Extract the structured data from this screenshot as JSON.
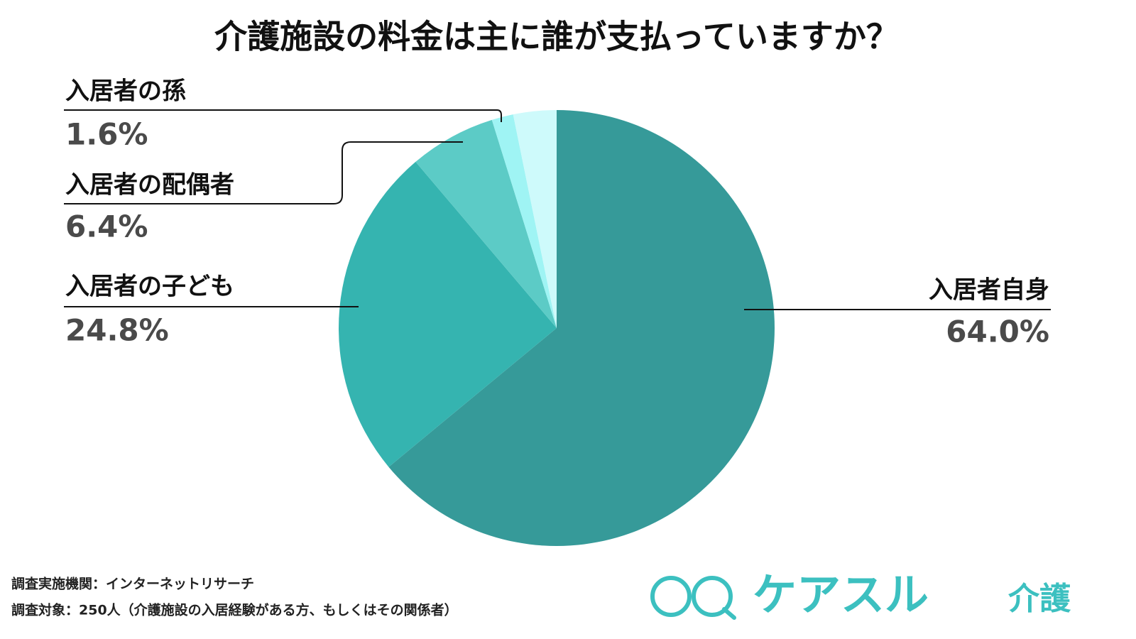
{
  "chart_data": {
    "type": "pie",
    "title": "介護施設の料金は主に誰が支払っていますか？",
    "categories": [
      "入居者自身",
      "入居者の子ども",
      "入居者の配偶者",
      "入居者の孫",
      null
    ],
    "values": [
      64.0,
      24.8,
      6.4,
      1.6,
      3.2
    ],
    "value_labels": [
      "64.0%",
      "24.8%",
      "6.4%",
      "1.6%",
      null
    ],
    "colors": [
      "#369a99",
      "#35b4b0",
      "#5ccbc6",
      "#9ff4f4",
      "#cefafb"
    ],
    "notes": [
      "調査実施機関：インターネットリサーチ",
      "調査対象：250人（介護施設の入居経験がある方、もしくはその関係者）"
    ],
    "logo": [
      "ケアスル",
      "介護"
    ]
  }
}
